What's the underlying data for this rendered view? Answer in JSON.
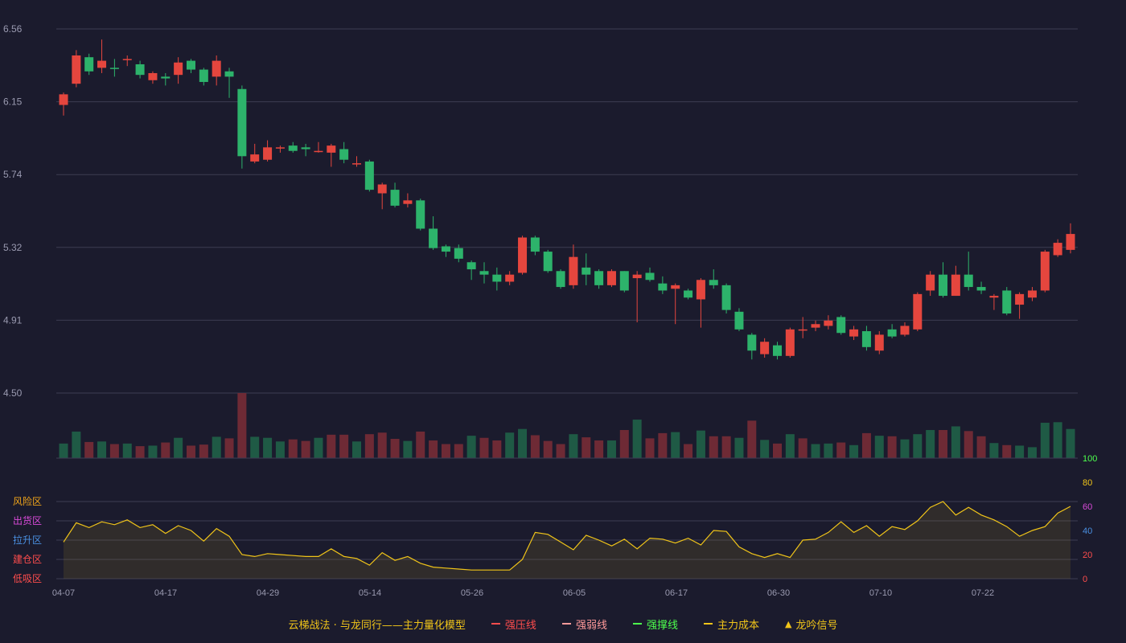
{
  "chart_data": {
    "type": "candlestick",
    "price_axis": {
      "ticks": [
        "6.56",
        "6.15",
        "5.74",
        "5.32",
        "4.91",
        "4.50"
      ],
      "ylim": [
        4.5,
        6.56
      ]
    },
    "x_tick_labels": [
      "04-07",
      "04-17",
      "04-29",
      "05-14",
      "05-26",
      "06-05",
      "06-17",
      "06-30",
      "07-10",
      "07-22"
    ],
    "up_color": "#e5463e",
    "down_color": "#2db36b",
    "candles": [
      [
        6.13,
        6.19,
        6.07,
        6.2,
        "u"
      ],
      [
        6.25,
        6.41,
        6.23,
        6.44,
        "u"
      ],
      [
        6.4,
        6.32,
        6.3,
        6.42,
        "d"
      ],
      [
        6.34,
        6.38,
        6.31,
        6.5,
        "u"
      ],
      [
        6.34,
        6.34,
        6.29,
        6.39,
        "d"
      ],
      [
        6.39,
        6.39,
        6.35,
        6.41,
        "u"
      ],
      [
        6.36,
        6.3,
        6.28,
        6.38,
        "d"
      ],
      [
        6.27,
        6.31,
        6.25,
        6.32,
        "u"
      ],
      [
        6.29,
        6.28,
        6.24,
        6.31,
        "d"
      ],
      [
        6.3,
        6.37,
        6.25,
        6.4,
        "u"
      ],
      [
        6.38,
        6.33,
        6.31,
        6.39,
        "d"
      ],
      [
        6.33,
        6.26,
        6.24,
        6.34,
        "d"
      ],
      [
        6.29,
        6.38,
        6.24,
        6.41,
        "u"
      ],
      [
        6.32,
        6.29,
        6.17,
        6.34,
        "d"
      ],
      [
        6.22,
        5.84,
        5.77,
        6.24,
        "d"
      ],
      [
        5.81,
        5.85,
        5.8,
        5.91,
        "u"
      ],
      [
        5.82,
        5.89,
        5.81,
        5.93,
        "u"
      ],
      [
        5.89,
        5.89,
        5.86,
        5.9,
        "u"
      ],
      [
        5.9,
        5.87,
        5.86,
        5.92,
        "d"
      ],
      [
        5.89,
        5.88,
        5.84,
        5.91,
        "d"
      ],
      [
        5.87,
        5.87,
        5.86,
        5.92,
        "u"
      ],
      [
        5.86,
        5.9,
        5.78,
        5.91,
        "u"
      ],
      [
        5.88,
        5.82,
        5.8,
        5.92,
        "d"
      ],
      [
        5.8,
        5.8,
        5.78,
        5.84,
        "u"
      ],
      [
        5.81,
        5.65,
        5.64,
        5.82,
        "d"
      ],
      [
        5.63,
        5.68,
        5.54,
        5.69,
        "u"
      ],
      [
        5.65,
        5.56,
        5.55,
        5.69,
        "d"
      ],
      [
        5.57,
        5.59,
        5.55,
        5.63,
        "u"
      ],
      [
        5.59,
        5.43,
        5.42,
        5.6,
        "d"
      ],
      [
        5.43,
        5.32,
        5.31,
        5.5,
        "d"
      ],
      [
        5.33,
        5.3,
        5.27,
        5.34,
        "d"
      ],
      [
        5.32,
        5.26,
        5.24,
        5.34,
        "d"
      ],
      [
        5.24,
        5.2,
        5.14,
        5.25,
        "d"
      ],
      [
        5.19,
        5.17,
        5.12,
        5.24,
        "d"
      ],
      [
        5.17,
        5.13,
        5.08,
        5.21,
        "d"
      ],
      [
        5.13,
        5.17,
        5.11,
        5.19,
        "u"
      ],
      [
        5.18,
        5.38,
        5.17,
        5.39,
        "u"
      ],
      [
        5.38,
        5.3,
        5.28,
        5.39,
        "d"
      ],
      [
        5.3,
        5.19,
        5.18,
        5.31,
        "d"
      ],
      [
        5.19,
        5.1,
        5.09,
        5.2,
        "d"
      ],
      [
        5.11,
        5.27,
        5.09,
        5.34,
        "u"
      ],
      [
        5.21,
        5.17,
        5.11,
        5.29,
        "d"
      ],
      [
        5.19,
        5.11,
        5.09,
        5.2,
        "d"
      ],
      [
        5.11,
        5.19,
        5.1,
        5.2,
        "u"
      ],
      [
        5.19,
        5.08,
        5.07,
        5.19,
        "d"
      ],
      [
        5.15,
        5.17,
        4.9,
        5.19,
        "u"
      ],
      [
        5.18,
        5.14,
        5.13,
        5.21,
        "d"
      ],
      [
        5.12,
        5.08,
        5.06,
        5.16,
        "d"
      ],
      [
        5.09,
        5.11,
        4.89,
        5.12,
        "u"
      ],
      [
        5.08,
        5.04,
        5.03,
        5.09,
        "d"
      ],
      [
        5.03,
        5.14,
        4.87,
        5.15,
        "u"
      ],
      [
        5.14,
        5.11,
        5.09,
        5.2,
        "d"
      ],
      [
        5.11,
        4.97,
        4.95,
        5.12,
        "d"
      ],
      [
        4.96,
        4.86,
        4.85,
        4.98,
        "d"
      ],
      [
        4.83,
        4.74,
        4.69,
        4.84,
        "d"
      ],
      [
        4.72,
        4.79,
        4.7,
        4.81,
        "u"
      ],
      [
        4.77,
        4.71,
        4.69,
        4.79,
        "d"
      ],
      [
        4.71,
        4.86,
        4.7,
        4.87,
        "u"
      ],
      [
        4.86,
        4.86,
        4.81,
        4.93,
        "u"
      ],
      [
        4.87,
        4.89,
        4.85,
        4.91,
        "u"
      ],
      [
        4.88,
        4.91,
        4.86,
        4.94,
        "u"
      ],
      [
        4.93,
        4.84,
        4.83,
        4.94,
        "d"
      ],
      [
        4.82,
        4.86,
        4.8,
        4.88,
        "u"
      ],
      [
        4.85,
        4.76,
        4.74,
        4.88,
        "d"
      ],
      [
        4.74,
        4.83,
        4.72,
        4.85,
        "u"
      ],
      [
        4.86,
        4.82,
        4.81,
        4.89,
        "d"
      ],
      [
        4.83,
        4.88,
        4.82,
        4.9,
        "u"
      ],
      [
        4.86,
        5.06,
        4.85,
        5.07,
        "u"
      ],
      [
        5.08,
        5.17,
        5.05,
        5.19,
        "u"
      ],
      [
        5.17,
        5.05,
        5.04,
        5.24,
        "d"
      ],
      [
        5.05,
        5.17,
        5.05,
        5.22,
        "u"
      ],
      [
        5.17,
        5.1,
        5.08,
        5.3,
        "d"
      ],
      [
        5.1,
        5.08,
        5.06,
        5.13,
        "d"
      ],
      [
        5.04,
        5.05,
        4.97,
        5.06,
        "u"
      ],
      [
        5.08,
        4.95,
        4.94,
        5.1,
        "d"
      ],
      [
        5.0,
        5.06,
        4.92,
        5.07,
        "u"
      ],
      [
        5.04,
        5.08,
        5.02,
        5.1,
        "u"
      ],
      [
        5.08,
        5.3,
        5.07,
        5.31,
        "u"
      ],
      [
        5.28,
        5.35,
        5.27,
        5.37,
        "u"
      ],
      [
        5.31,
        5.4,
        5.29,
        5.46,
        "u"
      ]
    ],
    "volume": [
      [
        28,
        "d"
      ],
      [
        51,
        "d"
      ],
      [
        31,
        "u"
      ],
      [
        32,
        "d"
      ],
      [
        27,
        "u"
      ],
      [
        28,
        "d"
      ],
      [
        23,
        "u"
      ],
      [
        24,
        "d"
      ],
      [
        30,
        "u"
      ],
      [
        39,
        "d"
      ],
      [
        24,
        "u"
      ],
      [
        26,
        "u"
      ],
      [
        41,
        "d"
      ],
      [
        38,
        "u"
      ],
      [
        125,
        "u"
      ],
      [
        41,
        "d"
      ],
      [
        39,
        "d"
      ],
      [
        32,
        "d"
      ],
      [
        36,
        "u"
      ],
      [
        33,
        "u"
      ],
      [
        39,
        "d"
      ],
      [
        45,
        "u"
      ],
      [
        45,
        "u"
      ],
      [
        32,
        "d"
      ],
      [
        46,
        "u"
      ],
      [
        49,
        "u"
      ],
      [
        37,
        "u"
      ],
      [
        33,
        "d"
      ],
      [
        51,
        "u"
      ],
      [
        34,
        "u"
      ],
      [
        27,
        "u"
      ],
      [
        27,
        "u"
      ],
      [
        43,
        "d"
      ],
      [
        39,
        "u"
      ],
      [
        34,
        "u"
      ],
      [
        49,
        "d"
      ],
      [
        56,
        "d"
      ],
      [
        44,
        "u"
      ],
      [
        33,
        "u"
      ],
      [
        27,
        "u"
      ],
      [
        46,
        "d"
      ],
      [
        40,
        "u"
      ],
      [
        34,
        "u"
      ],
      [
        34,
        "d"
      ],
      [
        54,
        "u"
      ],
      [
        74,
        "d"
      ],
      [
        38,
        "u"
      ],
      [
        48,
        "u"
      ],
      [
        50,
        "d"
      ],
      [
        27,
        "u"
      ],
      [
        53,
        "d"
      ],
      [
        42,
        "u"
      ],
      [
        42,
        "u"
      ],
      [
        39,
        "d"
      ],
      [
        72,
        "u"
      ],
      [
        35,
        "d"
      ],
      [
        28,
        "u"
      ],
      [
        46,
        "d"
      ],
      [
        38,
        "u"
      ],
      [
        27,
        "d"
      ],
      [
        28,
        "d"
      ],
      [
        30,
        "u"
      ],
      [
        25,
        "d"
      ],
      [
        48,
        "u"
      ],
      [
        43,
        "d"
      ],
      [
        42,
        "u"
      ],
      [
        36,
        "d"
      ],
      [
        46,
        "d"
      ],
      [
        54,
        "d"
      ],
      [
        54,
        "u"
      ],
      [
        61,
        "d"
      ],
      [
        52,
        "u"
      ],
      [
        42,
        "u"
      ],
      [
        29,
        "d"
      ],
      [
        25,
        "u"
      ],
      [
        24,
        "d"
      ],
      [
        21,
        "d"
      ],
      [
        68,
        "d"
      ],
      [
        69,
        "d"
      ],
      [
        56,
        "d"
      ]
    ],
    "indicator": {
      "right_ticks": [
        "100",
        "80",
        "60",
        "40",
        "20",
        "0"
      ],
      "right_tick_colors": [
        "#4dff4d",
        "#f0c419",
        "#d94ad9",
        "#4a90e2",
        "#ff4d4d",
        "#ff4d4d"
      ],
      "ylim": [
        0,
        100
      ],
      "zones": [
        {
          "label": "风险区",
          "color": "#f0a419"
        },
        {
          "label": "出货区",
          "color": "#d94ad9"
        },
        {
          "label": "拉升区",
          "color": "#4a90e2"
        },
        {
          "label": "建仓区",
          "color": "#ff4d4d"
        },
        {
          "label": "低吸区",
          "color": "#ff4d4d"
        }
      ],
      "line_color": "#f0c419",
      "values": [
        38,
        58,
        53,
        59,
        56,
        61,
        53,
        56,
        47,
        55,
        50,
        39,
        52,
        44,
        25,
        23,
        26,
        25,
        24,
        23,
        23,
        31,
        23,
        21,
        14,
        27,
        19,
        23,
        16,
        12,
        11,
        10,
        9,
        9,
        9,
        9,
        20,
        48,
        46,
        38,
        30,
        45,
        40,
        34,
        41,
        31,
        42,
        41,
        37,
        42,
        35,
        50,
        49,
        33,
        26,
        22,
        26,
        22,
        40,
        41,
        48,
        59,
        48,
        55,
        44,
        54,
        51,
        60,
        74,
        80,
        66,
        74,
        66,
        61,
        54,
        44,
        50,
        54,
        68,
        75
      ]
    },
    "legend": {
      "title": "云梯战法 · 与龙同行——主力量化模型",
      "items": [
        {
          "label": "强压线",
          "color": "#ff4d4d",
          "style": "solid"
        },
        {
          "label": "强弱线",
          "color": "#ff9a9a",
          "style": "dashed"
        },
        {
          "label": "强撑线",
          "color": "#4dff4d",
          "style": "solid"
        },
        {
          "label": "主力成本",
          "color": "#f0c419",
          "style": "dashed"
        },
        {
          "label": "龙吟信号",
          "color": "#f0c419",
          "style": "triangle"
        }
      ]
    }
  }
}
